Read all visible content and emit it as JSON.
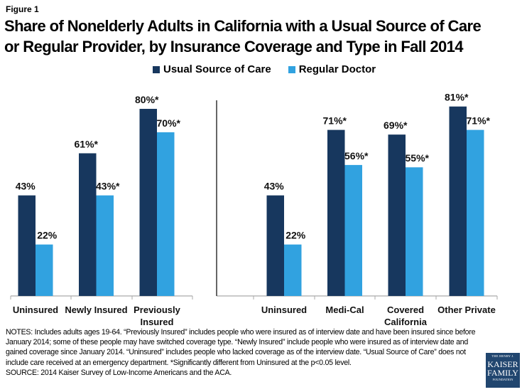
{
  "figure_label": "Figure 1",
  "title_line1": "Share of Nonelderly Adults in California with a Usual Source of Care",
  "title_line2": "or Regular Provider, by Insurance Coverage and Type in Fall 2014",
  "colors": {
    "usual_source": "#17375e",
    "regular_doctor": "#31a2e0",
    "axis": "#aaaaaa",
    "divider": "#000000"
  },
  "chart_data": {
    "type": "bar",
    "title": "Share of Nonelderly Adults in California with a Usual Source of Care or Regular Provider, by Insurance Coverage and Type in Fall 2014",
    "xlabel": "",
    "ylabel": "",
    "ylim": [
      0,
      80
    ],
    "grid": false,
    "legend_position": "top-center",
    "groups": [
      {
        "name": "Insurance Coverage",
        "categories": [
          "Uninsured",
          "Newly Insured",
          "Previously Insured"
        ]
      },
      {
        "name": "Insurance Type",
        "categories": [
          "Uninsured",
          "Medi-Cal",
          "Covered California",
          "Other Private"
        ]
      }
    ],
    "categories": [
      "Uninsured",
      "Newly Insured",
      "Previously Insured",
      "Uninsured",
      "Medi-Cal",
      "Covered California",
      "Other Private"
    ],
    "category_label_lines": [
      [
        "Uninsured"
      ],
      [
        "Newly Insured"
      ],
      [
        "Previously",
        "Insured"
      ],
      [
        "Uninsured"
      ],
      [
        "Medi-Cal"
      ],
      [
        "Covered",
        "California"
      ],
      [
        "Other Private"
      ]
    ],
    "series": [
      {
        "name": "Usual Source of Care",
        "values": [
          43,
          61,
          80,
          43,
          71,
          69,
          81
        ],
        "labels": [
          "43%",
          "61%*",
          "80%*",
          "43%",
          "71%*",
          "69%*",
          "81%*"
        ]
      },
      {
        "name": "Regular Doctor",
        "values": [
          22,
          43,
          70,
          22,
          56,
          55,
          71
        ],
        "labels": [
          "22%",
          "43%*",
          "70%*",
          "22%",
          "56%*",
          "55%*",
          "71%*"
        ]
      }
    ]
  },
  "notes": "NOTES: Includes adults ages 19-64. “Previously Insured” includes people who were insured as of interview date and have been insured since before January 2014; some of these people may have switched coverage type. “Newly Insured” include people who were insured as of interview date and gained coverage since January 2014. “Uninsured” includes people who lacked coverage as of the interview date. “Usual Source of Care” does not include care received at an emergency department. *Significantly different from Uninsured at the p<0.05 level.",
  "source": "SOURCE: 2014 Kaiser Survey of Low-Income Americans and the ACA.",
  "logo": {
    "line1": "THE HENRY J.",
    "line2": "KAISER",
    "line3": "FAMILY",
    "line4": "FOUNDATION"
  }
}
